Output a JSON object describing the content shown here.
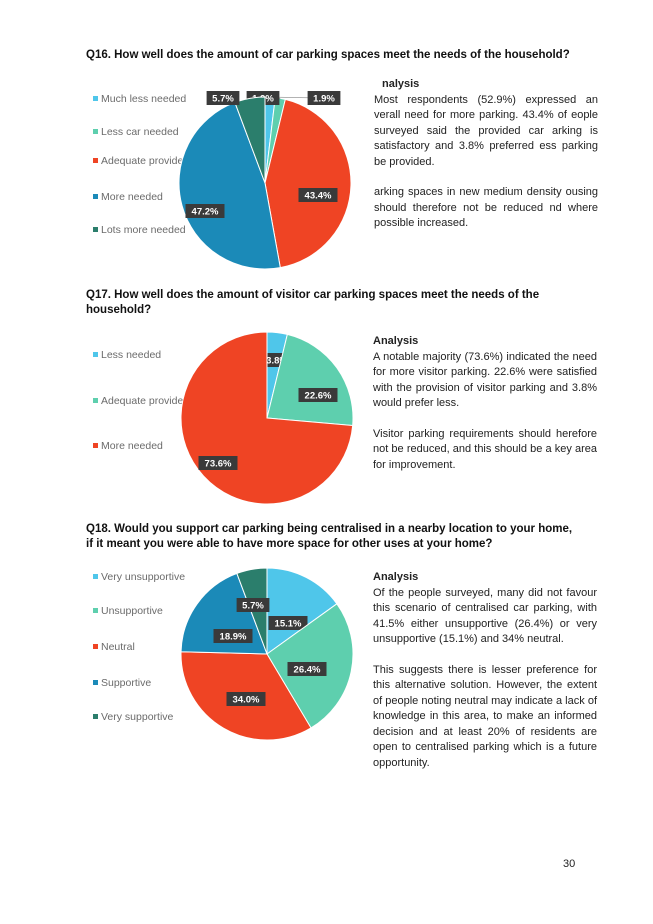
{
  "page_number": "30",
  "colors": {
    "light_blue": "#4fc6ea",
    "light_green": "#5ecfae",
    "red": "#ef4424",
    "blue": "#1b8ab8",
    "dark_green": "#2b7e6c",
    "badge": "#3a3a3a"
  },
  "questions": [
    {
      "title": "Q16. How well does the amount of car parking spaces meet the needs of the household?",
      "analysis_heading": "nalysis",
      "analysis_paragraphs": [
        "Most respondents (52.9%) expressed an verall need for more parking. 43.4% of eople surveyed said the provided car arking is satisfactory and 3.8% preferred ess parking be provided.",
        "arking spaces in new medium density ousing should therefore not be reduced nd where possible increased."
      ]
    },
    {
      "title": "Q17. How well does the amount of visitor car parking spaces meet the needs of the household?",
      "analysis_heading": "Analysis",
      "analysis_paragraphs": [
        "A notable majority (73.6%) indicated the need for more visitor parking. 22.6% were satisfied with the provision of visitor parking and 3.8% would prefer less.",
        "Visitor parking requirements should herefore not be reduced, and this should be a key area for improvement."
      ]
    },
    {
      "title": "Q18. Would you support car parking being centralised in a nearby location to your home, if it meant you were able to have more space for other uses at your home?",
      "analysis_heading": "Analysis",
      "analysis_paragraphs": [
        "Of the people surveyed, many did not favour this scenario of centralised car parking, with 41.5% either unsupportive (26.4%) or very unsupportive (15.1%) and 34% neutral.",
        "This suggests there is lesser preference for this alternative solution. However, the extent of people noting neutral may indicate a lack of knowledge in this area, to make an informed decision and at least 20% of residents are open to centralised parking which is a future opportunity."
      ]
    }
  ],
  "chart_data": [
    {
      "type": "pie",
      "legend_position": "left",
      "categories": [
        "Much less needed",
        "Less car needed",
        "Adequate provided",
        "More needed",
        "Lots more needed"
      ],
      "values": [
        1.9,
        1.9,
        43.4,
        47.2,
        5.7
      ],
      "data_labels": [
        "1.9%",
        "1.9%",
        "43.4%",
        "47.2%",
        "5.7%"
      ],
      "colors": [
        "#4fc6ea",
        "#5ecfae",
        "#ef4424",
        "#1b8ab8",
        "#2b7e6c"
      ]
    },
    {
      "type": "pie",
      "legend_position": "left",
      "categories": [
        "Less needed",
        "Adequate provided",
        "More needed"
      ],
      "values": [
        3.8,
        22.6,
        73.6
      ],
      "data_labels": [
        "3.8%",
        "22.6%",
        "73.6%"
      ],
      "colors": [
        "#4fc6ea",
        "#5ecfae",
        "#ef4424"
      ]
    },
    {
      "type": "pie",
      "legend_position": "left",
      "categories": [
        "Very unsupportive",
        "Unsupportive",
        "Neutral",
        "Supportive",
        "Very supportive"
      ],
      "values": [
        15.1,
        26.4,
        34.0,
        18.9,
        5.7
      ],
      "data_labels": [
        "15.1%",
        "26.4%",
        "34.0%",
        "18.9%",
        "5.7%"
      ],
      "colors": [
        "#4fc6ea",
        "#5ecfae",
        "#ef4424",
        "#1b8ab8",
        "#2b7e6c"
      ]
    }
  ]
}
